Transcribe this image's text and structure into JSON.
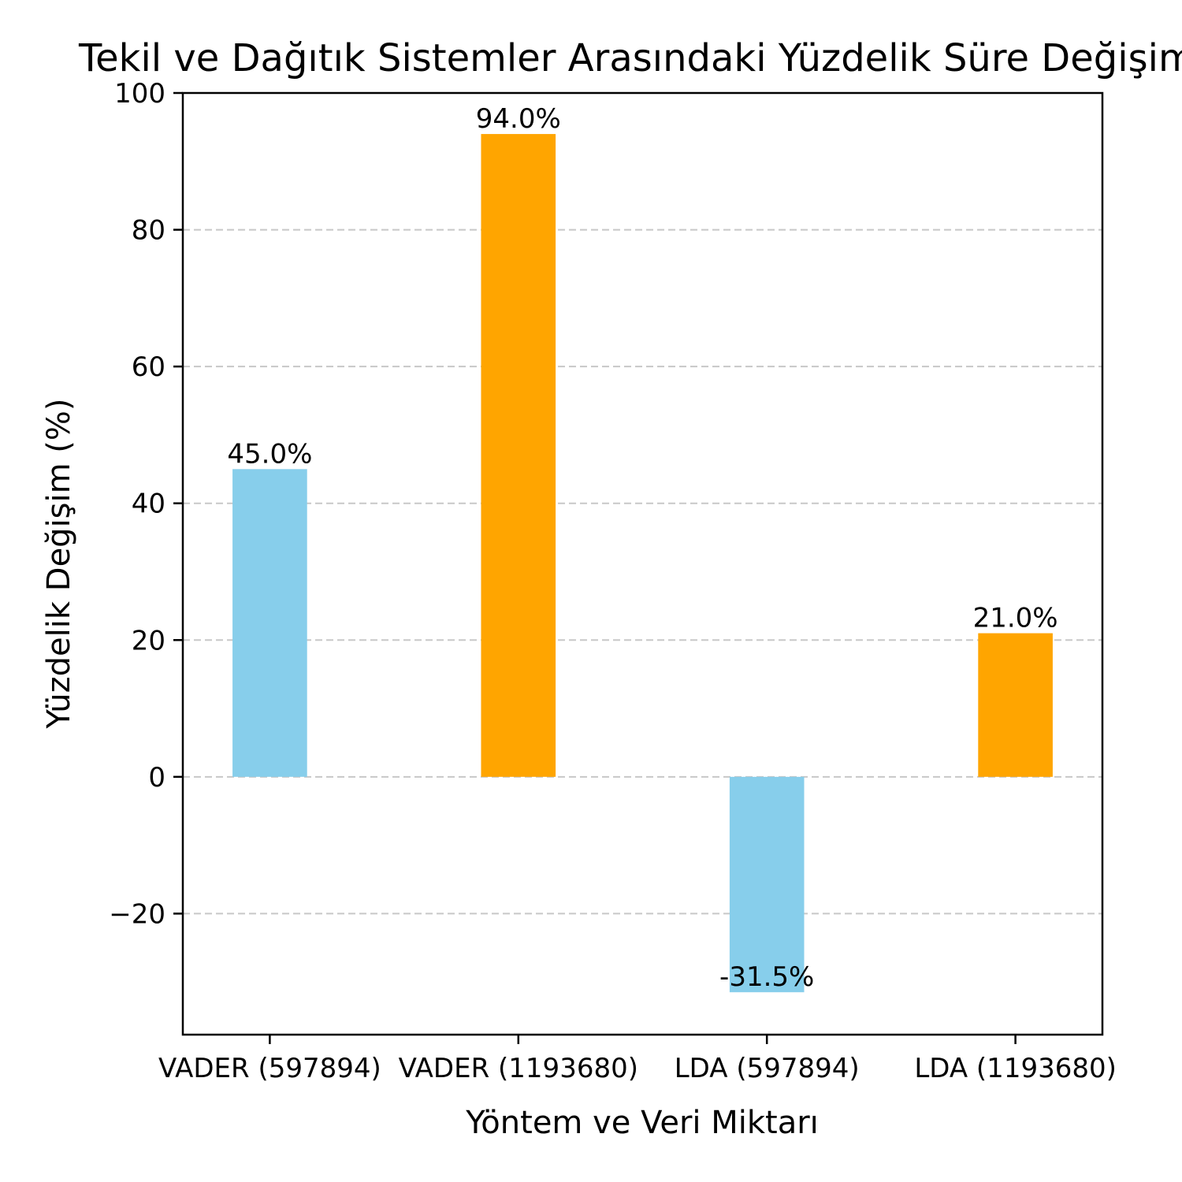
{
  "chart_data": {
    "type": "bar",
    "title": "Tekil ve Dağıtık Sistemler Arasındaki Yüzdelik Süre Değişimi",
    "xlabel": "Yöntem ve Veri Miktarı",
    "ylabel": "Yüzdelik Değişim (%)",
    "categories": [
      "VADER (597894)",
      "VADER (1193680)",
      "LDA (597894)",
      "LDA (1193680)"
    ],
    "values": [
      45.0,
      94.0,
      -31.5,
      21.0
    ],
    "data_labels": [
      "45.0%",
      "94.0%",
      "-31.5%",
      "21.0%"
    ],
    "colors": [
      "#87ceeb",
      "#ffa500",
      "#87ceeb",
      "#ffa500"
    ],
    "ylim": [
      -37.7,
      100
    ],
    "yticks": [
      -20,
      0,
      20,
      40,
      60,
      80,
      100
    ],
    "ytick_labels": [
      "−20",
      "0",
      "20",
      "40",
      "60",
      "80",
      "100"
    ],
    "grid": "y-dashed",
    "legend": "none"
  }
}
